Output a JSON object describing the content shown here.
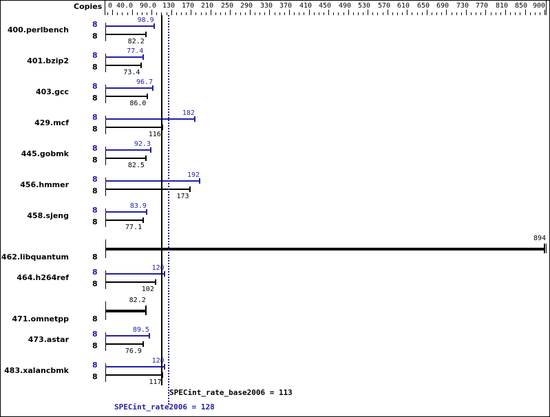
{
  "chart_data": {
    "type": "bar",
    "title": "",
    "xlabel": "",
    "ylabel": "",
    "axis_header": "Copies",
    "xlim": [
      0,
      900
    ],
    "tick_labels": [
      "0",
      "40.0",
      "90.0",
      "130",
      "170",
      "210",
      "250",
      "290",
      "330",
      "370",
      "410",
      "450",
      "490",
      "530",
      "570",
      "610",
      "650",
      "690",
      "730",
      "770",
      "810",
      "850",
      "900"
    ],
    "categories": [
      "400.perlbench",
      "401.bzip2",
      "403.gcc",
      "429.mcf",
      "445.gobmk",
      "456.hmmer",
      "458.sjeng",
      "462.libquantum",
      "464.h264ref",
      "471.omnetpp",
      "473.astar",
      "483.xalancbmk"
    ],
    "series": [
      {
        "name": "SPECint_rate2006 (peak)",
        "color": "#1f1fa8",
        "copies": [
          8,
          8,
          8,
          8,
          8,
          8,
          8,
          null,
          8,
          null,
          8,
          8
        ],
        "values": [
          98.9,
          77.4,
          96.7,
          182,
          92.3,
          192,
          83.9,
          null,
          120,
          null,
          89.5,
          120
        ]
      },
      {
        "name": "SPECint_rate_base2006",
        "color": "#000000",
        "copies": [
          8,
          8,
          8,
          8,
          8,
          8,
          8,
          8,
          8,
          8,
          8,
          8
        ],
        "values": [
          82.2,
          73.4,
          86.0,
          116,
          82.5,
          173,
          77.1,
          894,
          102,
          82.2,
          76.9,
          117
        ]
      }
    ],
    "value_labels_base": [
      "82.2",
      "73.4",
      "86.0",
      "116",
      "82.5",
      "173",
      "77.1",
      "894",
      "102",
      "82.2",
      "76.9",
      "117"
    ],
    "value_labels_peak": [
      "98.9",
      "77.4",
      "96.7",
      "182",
      "92.3",
      "192",
      "83.9",
      "",
      "120",
      "",
      "89.5",
      "120"
    ],
    "reference_lines": [
      {
        "label": "SPECint_rate_base2006 = 113",
        "value": 113,
        "style": "solid",
        "color": "#000000"
      },
      {
        "label": "SPECint_rate2006 = 128",
        "value": 128,
        "style": "dotted",
        "color": "#1f1fa8"
      }
    ],
    "legend_position": "bottom"
  }
}
